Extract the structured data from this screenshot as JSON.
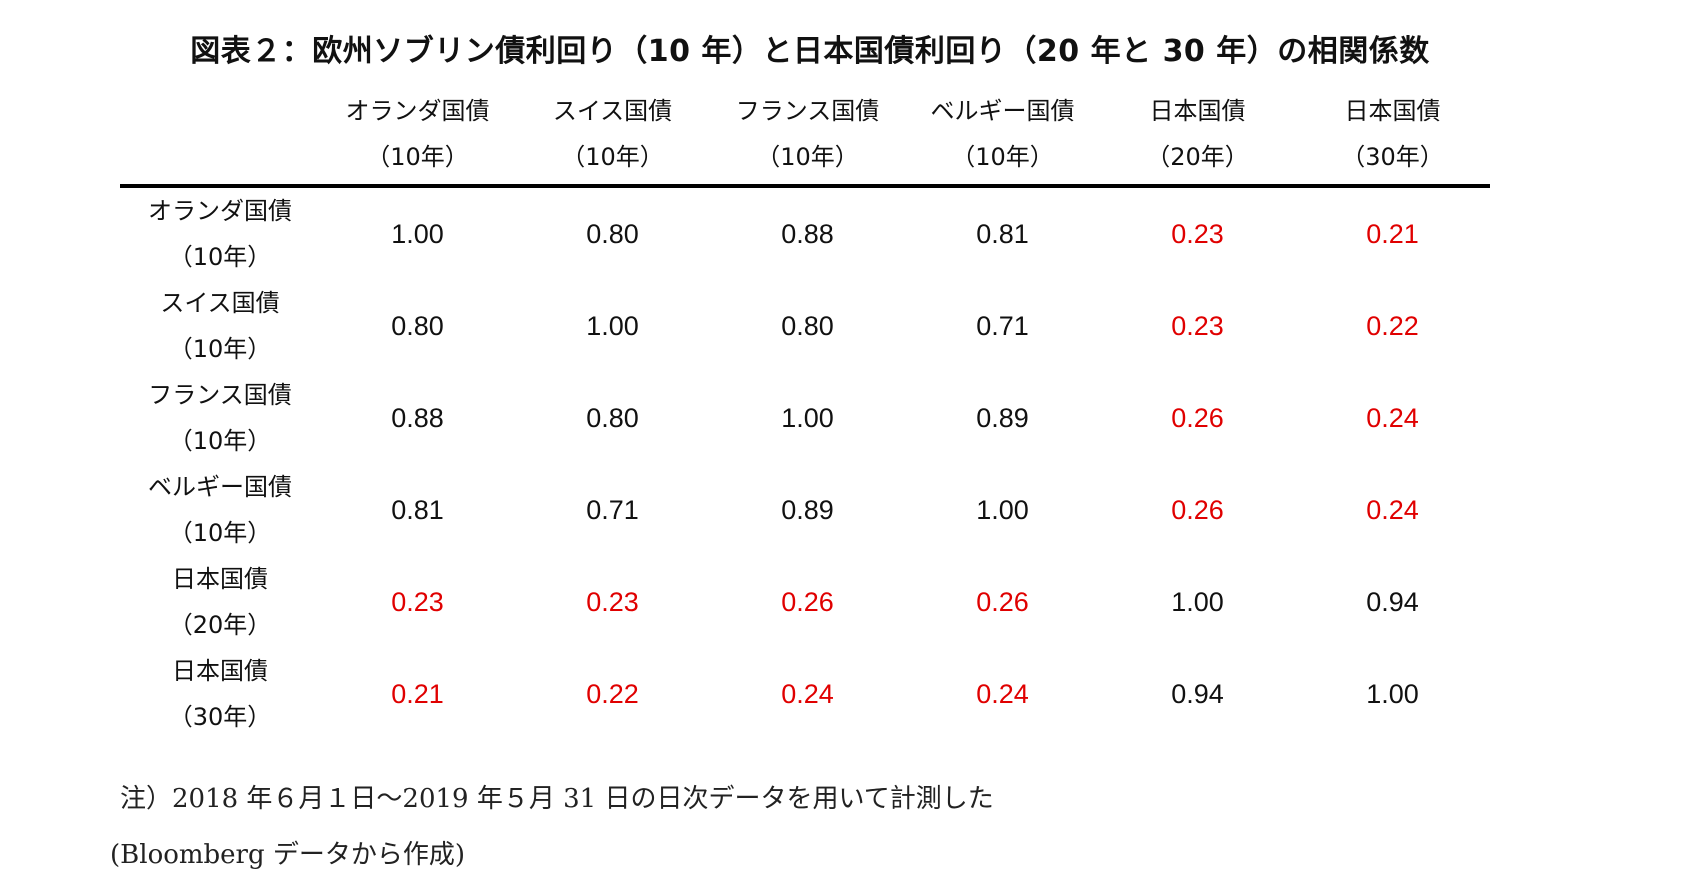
{
  "title": "図表２：欧州ソブリン債利回り（10 年）と日本国債利回り（20 年と 30 年）の相関係数",
  "columns": [
    {
      "line1": "オランダ国債",
      "line2": "（10年）"
    },
    {
      "line1": "スイス国債",
      "line2": "（10年）"
    },
    {
      "line1": "フランス国債",
      "line2": "（10年）"
    },
    {
      "line1": "ベルギー国債",
      "line2": "（10年）"
    },
    {
      "line1": "日本国債",
      "line2": "（20年）"
    },
    {
      "line1": "日本国債",
      "line2": "（30年）"
    }
  ],
  "rows": [
    {
      "line1": "オランダ国債",
      "line2": "（10年）",
      "values": [
        "1.00",
        "0.80",
        "0.88",
        "0.81",
        "0.23",
        "0.21"
      ]
    },
    {
      "line1": "スイス国債",
      "line2": "（10年）",
      "values": [
        "0.80",
        "1.00",
        "0.80",
        "0.71",
        "0.23",
        "0.22"
      ]
    },
    {
      "line1": "フランス国債",
      "line2": "（10年）",
      "values": [
        "0.88",
        "0.80",
        "1.00",
        "0.89",
        "0.26",
        "0.24"
      ]
    },
    {
      "line1": "ベルギー国債",
      "line2": "（10年）",
      "values": [
        "0.81",
        "0.71",
        "0.89",
        "1.00",
        "0.26",
        "0.24"
      ]
    },
    {
      "line1": "日本国債",
      "line2": "（20年）",
      "values": [
        "0.23",
        "0.23",
        "0.26",
        "0.26",
        "1.00",
        "0.94"
      ]
    },
    {
      "line1": "日本国債",
      "line2": "（30年）",
      "values": [
        "0.21",
        "0.22",
        "0.24",
        "0.24",
        "0.94",
        "1.00"
      ]
    }
  ],
  "highlight_color": "#e00000",
  "note": "注）2018 年６月１日～2019 年５月 31 日の日次データを用いて計測した",
  "source": "(Bloomberg データから作成)"
}
